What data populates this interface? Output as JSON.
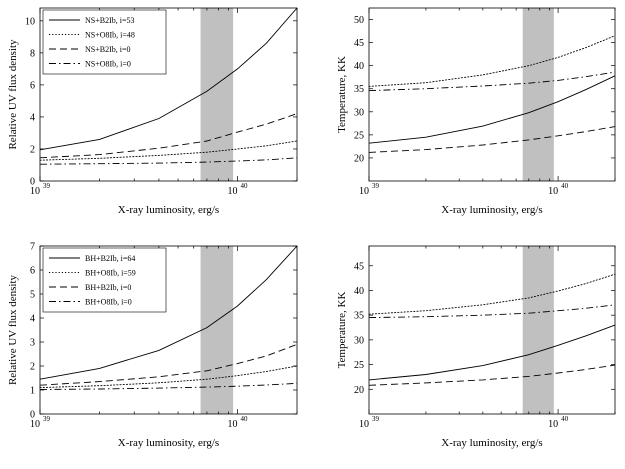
{
  "figure": {
    "x_axis_label": "X-ray luminosity, erg/s",
    "x_tick_base": "10",
    "x_tick_exponents": [
      "39",
      "40"
    ],
    "shaded_band_xrange": [
      6.5e+39,
      9.5e+39
    ],
    "shaded_band_color": "#c0c0c0"
  },
  "chart_data": [
    {
      "id": "ns_flux",
      "type": "line",
      "xscale": "log",
      "xlim": [
        1e+39,
        2e+40
      ],
      "ylim": [
        0,
        10.8
      ],
      "yticks": [
        0,
        2,
        4,
        6,
        8,
        10
      ],
      "ylabel": "Relative UV flux density",
      "xlabel": "X-ray luminosity, erg/s",
      "legend_position": "top-left",
      "series": [
        {
          "name": "NS+B2Ib, i=53",
          "style": "solid",
          "x": [
            1e+39,
            2e+39,
            4e+39,
            7e+39,
            1e+40,
            1.4e+40,
            2e+40
          ],
          "y": [
            1.95,
            2.6,
            3.9,
            5.6,
            7.0,
            8.6,
            10.8
          ]
        },
        {
          "name": "NS+O8Ib, i=48",
          "style": "dotted",
          "x": [
            1e+39,
            2e+39,
            4e+39,
            7e+39,
            1e+40,
            1.4e+40,
            2e+40
          ],
          "y": [
            1.3,
            1.42,
            1.6,
            1.8,
            2.0,
            2.2,
            2.5
          ]
        },
        {
          "name": "NS+B2Ib, i=0",
          "style": "dashed",
          "x": [
            1e+39,
            2e+39,
            4e+39,
            7e+39,
            1e+40,
            1.4e+40,
            2e+40
          ],
          "y": [
            1.45,
            1.65,
            2.05,
            2.5,
            3.05,
            3.55,
            4.2
          ]
        },
        {
          "name": "NS+O8Ib, i=0",
          "style": "dashdot",
          "x": [
            1e+39,
            2e+39,
            4e+39,
            7e+39,
            1e+40,
            1.4e+40,
            2e+40
          ],
          "y": [
            1.05,
            1.08,
            1.12,
            1.18,
            1.25,
            1.32,
            1.45
          ]
        }
      ]
    },
    {
      "id": "ns_temp",
      "type": "line",
      "xscale": "log",
      "xlim": [
        1e+39,
        2e+40
      ],
      "ylim": [
        15,
        52.5
      ],
      "yticks": [
        20,
        25,
        30,
        35,
        40,
        45,
        50
      ],
      "ylabel": "Temperature, KK",
      "xlabel": "X-ray luminosity, erg/s",
      "series": [
        {
          "name": "NS+B2Ib, i=53",
          "style": "solid",
          "x": [
            1e+39,
            2e+39,
            4e+39,
            7e+39,
            1e+40,
            1.4e+40,
            2e+40
          ],
          "y": [
            23.2,
            24.5,
            26.9,
            29.8,
            32.2,
            34.8,
            37.8
          ]
        },
        {
          "name": "NS+O8Ib, i=48",
          "style": "dotted",
          "x": [
            1e+39,
            2e+39,
            4e+39,
            7e+39,
            1e+40,
            1.4e+40,
            2e+40
          ],
          "y": [
            35.5,
            36.3,
            38.0,
            40.0,
            41.8,
            43.9,
            46.5
          ]
        },
        {
          "name": "NS+B2Ib, i=0",
          "style": "dashed",
          "x": [
            1e+39,
            2e+39,
            4e+39,
            7e+39,
            1e+40,
            1.4e+40,
            2e+40
          ],
          "y": [
            21.2,
            21.8,
            22.8,
            23.9,
            24.8,
            25.7,
            26.8
          ]
        },
        {
          "name": "NS+O8Ib, i=0",
          "style": "dashdot",
          "x": [
            1e+39,
            2e+39,
            4e+39,
            7e+39,
            1e+40,
            1.4e+40,
            2e+40
          ],
          "y": [
            34.6,
            35.0,
            35.6,
            36.2,
            36.8,
            37.6,
            38.6
          ]
        }
      ]
    },
    {
      "id": "bh_flux",
      "type": "line",
      "xscale": "log",
      "xlim": [
        1e+39,
        2e+40
      ],
      "ylim": [
        0,
        7
      ],
      "yticks": [
        0,
        1,
        2,
        3,
        4,
        5,
        6,
        7
      ],
      "ylabel": "Relative UV flux density",
      "xlabel": "X-ray luminosity, erg/s",
      "legend_position": "top-left",
      "series": [
        {
          "name": "BH+B2Ib, i=64",
          "style": "solid",
          "x": [
            1e+39,
            2e+39,
            4e+39,
            7e+39,
            1e+40,
            1.4e+40,
            2e+40
          ],
          "y": [
            1.45,
            1.9,
            2.65,
            3.6,
            4.5,
            5.6,
            7.0
          ]
        },
        {
          "name": "BH+O8Ib, i=59",
          "style": "dotted",
          "x": [
            1e+39,
            2e+39,
            4e+39,
            7e+39,
            1e+40,
            1.4e+40,
            2e+40
          ],
          "y": [
            1.1,
            1.18,
            1.3,
            1.45,
            1.6,
            1.77,
            2.0
          ]
        },
        {
          "name": "BH+B2Ib, i=0",
          "style": "dashed",
          "x": [
            1e+39,
            2e+39,
            4e+39,
            7e+39,
            1e+40,
            1.4e+40,
            2e+40
          ],
          "y": [
            1.2,
            1.35,
            1.55,
            1.8,
            2.1,
            2.42,
            2.9
          ]
        },
        {
          "name": "BH+O8Ib, i=0",
          "style": "dashdot",
          "x": [
            1e+39,
            2e+39,
            4e+39,
            7e+39,
            1e+40,
            1.4e+40,
            2e+40
          ],
          "y": [
            1.02,
            1.04,
            1.08,
            1.12,
            1.16,
            1.21,
            1.28
          ]
        }
      ]
    },
    {
      "id": "bh_temp",
      "type": "line",
      "xscale": "log",
      "xlim": [
        1e+39,
        2e+40
      ],
      "ylim": [
        15,
        49
      ],
      "yticks": [
        20,
        25,
        30,
        35,
        40,
        45
      ],
      "ylabel": "Temperature, KK",
      "xlabel": "X-ray luminosity, erg/s",
      "series": [
        {
          "name": "BH+B2Ib, i=64",
          "style": "solid",
          "x": [
            1e+39,
            2e+39,
            4e+39,
            7e+39,
            1e+40,
            1.4e+40,
            2e+40
          ],
          "y": [
            21.9,
            23.0,
            24.8,
            27.0,
            28.9,
            30.8,
            33.0
          ]
        },
        {
          "name": "BH+O8Ib, i=59",
          "style": "dotted",
          "x": [
            1e+39,
            2e+39,
            4e+39,
            7e+39,
            1e+40,
            1.4e+40,
            2e+40
          ],
          "y": [
            35.2,
            35.9,
            37.1,
            38.5,
            39.9,
            41.4,
            43.3
          ]
        },
        {
          "name": "BH+B2Ib, i=0",
          "style": "dashed",
          "x": [
            1e+39,
            2e+39,
            4e+39,
            7e+39,
            1e+40,
            1.4e+40,
            2e+40
          ],
          "y": [
            20.8,
            21.3,
            21.9,
            22.6,
            23.3,
            24.0,
            24.9
          ]
        },
        {
          "name": "BH+O8Ib, i=0",
          "style": "dashdot",
          "x": [
            1e+39,
            2e+39,
            4e+39,
            7e+39,
            1e+40,
            1.4e+40,
            2e+40
          ],
          "y": [
            34.5,
            34.7,
            35.0,
            35.4,
            35.9,
            36.4,
            37.1
          ]
        }
      ]
    }
  ]
}
